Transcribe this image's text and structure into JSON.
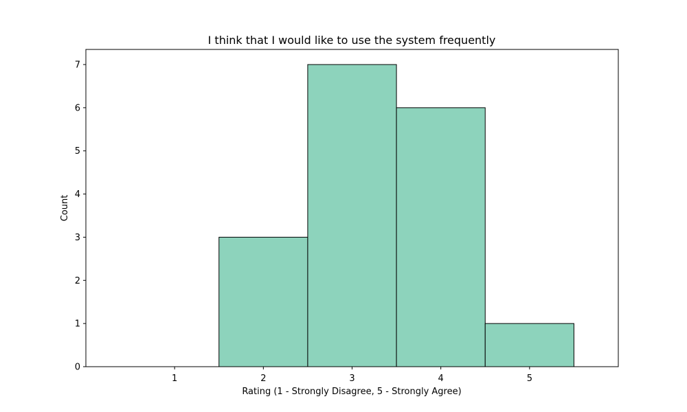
{
  "chart_data": {
    "type": "bar",
    "title": "I think that I would like to use the system frequently",
    "xlabel": "Rating (1 - Strongly Disagree, 5 - Strongly Agree)",
    "ylabel": "Count",
    "categories": [
      "1",
      "2",
      "3",
      "4",
      "5"
    ],
    "values": [
      0,
      3,
      7,
      6,
      1
    ],
    "xlim": [
      0,
      6
    ],
    "ylim": [
      0,
      7.35
    ],
    "yticks": [
      0,
      1,
      2,
      3,
      4,
      5,
      6,
      7
    ],
    "xticks": [
      1,
      2,
      3,
      4,
      5
    ],
    "bar_color": "#8dd3bc",
    "edge_color": "#000000",
    "grid": false,
    "legend": "none"
  }
}
